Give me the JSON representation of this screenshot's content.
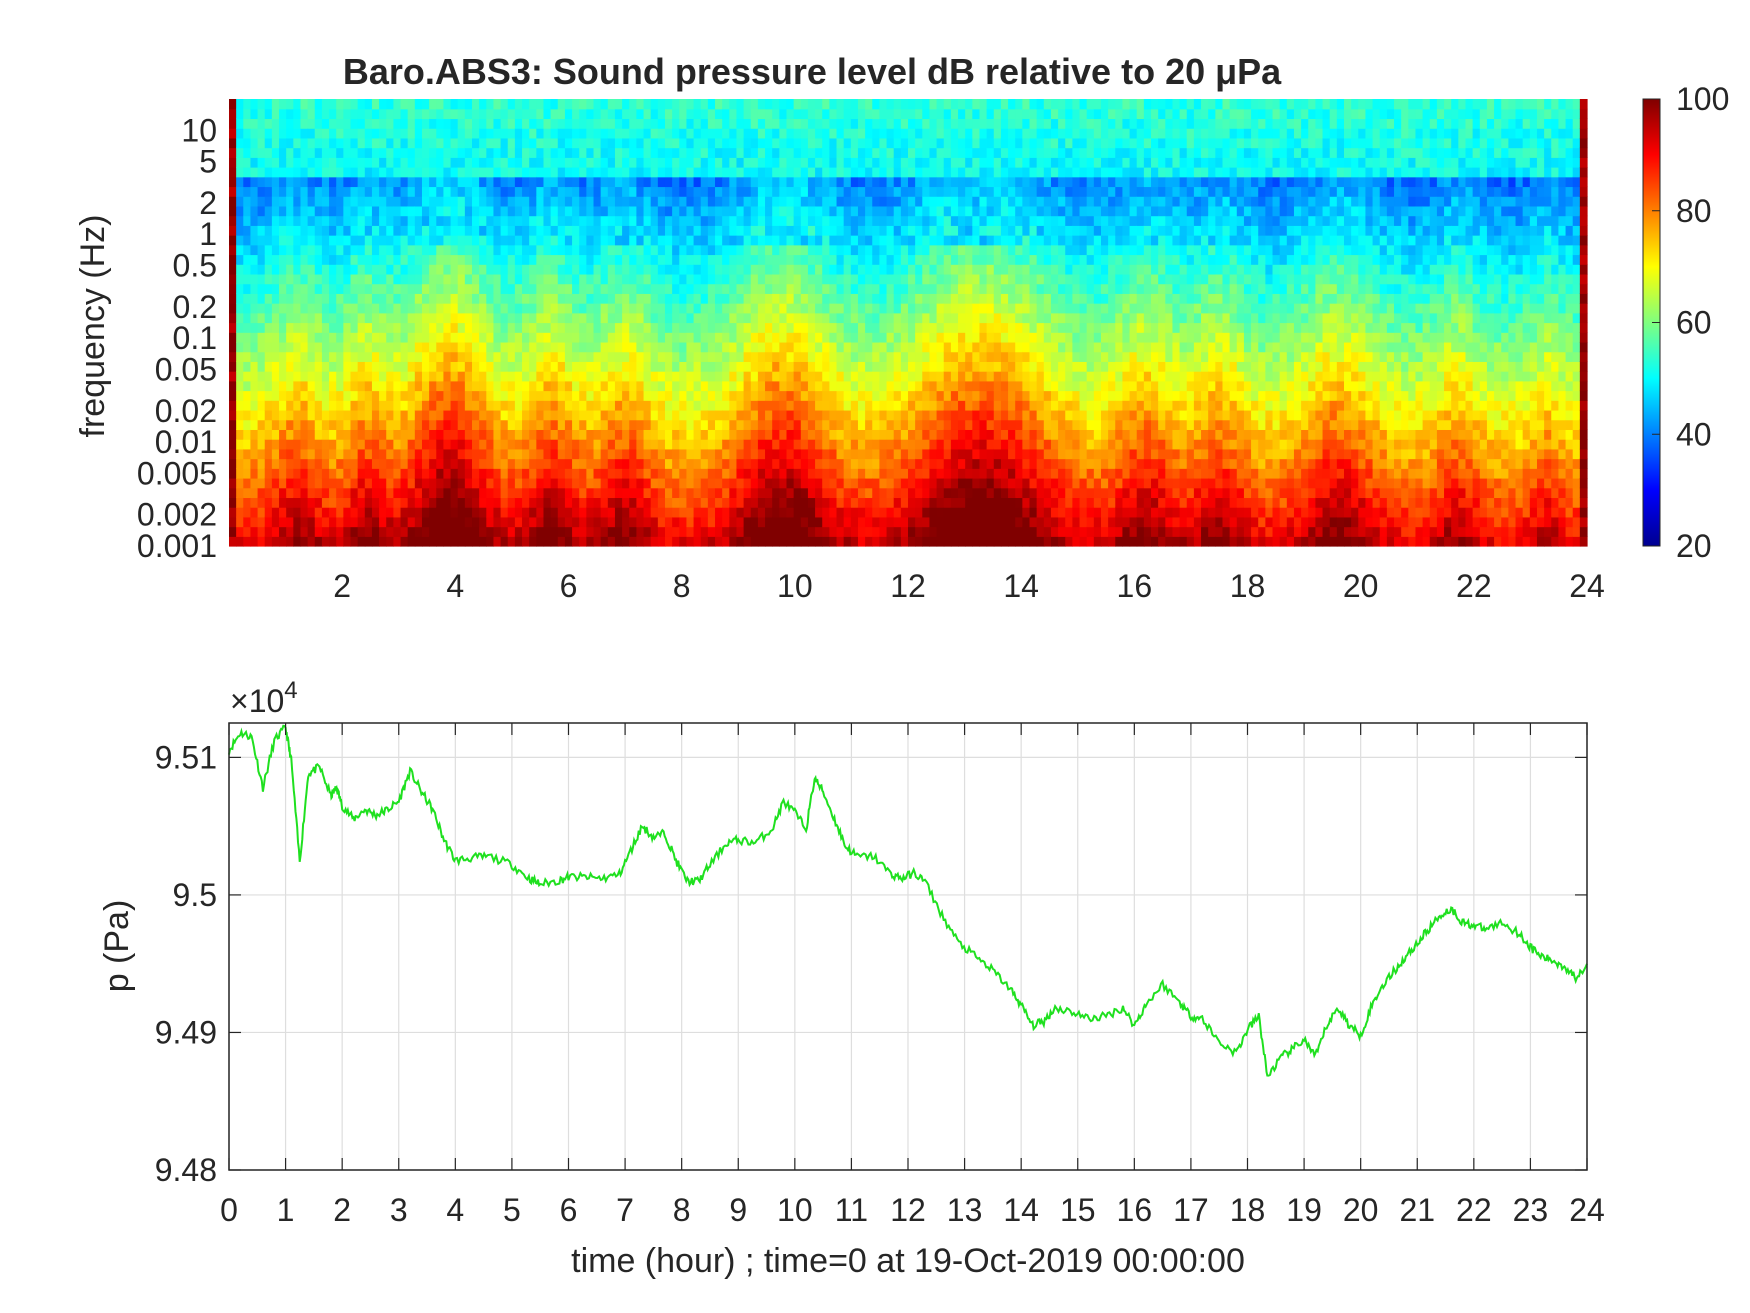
{
  "chart_data": [
    {
      "type": "heatmap",
      "title": "Baro.ABS3: Sound pressure level dB relative to 20 μPa",
      "ylabel": "frequency (Hz)",
      "xlabel": "",
      "x_range": [
        0,
        24
      ],
      "x_ticks": [
        "2",
        "4",
        "6",
        "8",
        "10",
        "12",
        "14",
        "16",
        "18",
        "20",
        "22",
        "24"
      ],
      "y_scale": "log",
      "y_range": [
        0.001,
        20
      ],
      "y_ticks": [
        "0.001",
        "0.002",
        "0.005",
        "0.01",
        "0.02",
        "0.05",
        "0.1",
        "0.2",
        "0.5",
        "1",
        "2",
        "5",
        "10"
      ],
      "colormap": "jet",
      "colorbar": {
        "range": [
          20,
          100
        ],
        "ticks": [
          "20",
          "40",
          "60",
          "80",
          "100"
        ]
      },
      "grid": false
    },
    {
      "type": "line",
      "title": "",
      "xlabel": "time (hour) ; time=0 at 19-Oct-2019 00:00:00",
      "ylabel": "p (Pa)",
      "x_range": [
        0,
        24
      ],
      "x_ticks": [
        "0",
        "1",
        "2",
        "3",
        "4",
        "5",
        "6",
        "7",
        "8",
        "9",
        "10",
        "11",
        "12",
        "13",
        "14",
        "15",
        "16",
        "17",
        "18",
        "19",
        "20",
        "21",
        "22",
        "23",
        "24"
      ],
      "y_range": [
        9.48,
        9.5125
      ],
      "y_ticks": [
        "9.48",
        "9.49",
        "9.5",
        "9.51"
      ],
      "y_exponent": "×10",
      "y_exponent_power": "4",
      "grid": true,
      "line_color": "#1fe01f",
      "series": [
        {
          "x": [
            0,
            0.2,
            0.4,
            0.6,
            0.8,
            1.0,
            1.1,
            1.25,
            1.4,
            1.6,
            1.8,
            1.9,
            2.0,
            2.2,
            2.4,
            2.6,
            2.8,
            3.0,
            3.2,
            3.4,
            3.6,
            3.8,
            4.0,
            4.3,
            4.6,
            5.0,
            5.3,
            5.5,
            5.8,
            6.0,
            6.3,
            6.6,
            6.9,
            7.1,
            7.3,
            7.5,
            7.7,
            7.9,
            8.1,
            8.3,
            8.5,
            8.8,
            9.0,
            9.3,
            9.6,
            9.8,
            10.0,
            10.2,
            10.35,
            10.5,
            10.7,
            10.9,
            11.1,
            11.4,
            11.7,
            11.9,
            12.1,
            12.3,
            12.6,
            12.9,
            13.2,
            13.5,
            13.8,
            14.0,
            14.2,
            14.4,
            14.6,
            14.9,
            15.2,
            15.5,
            15.8,
            16.0,
            16.2,
            16.5,
            16.8,
            17.0,
            17.2,
            17.5,
            17.8,
            18.0,
            18.2,
            18.35,
            18.6,
            18.8,
            19.0,
            19.2,
            19.4,
            19.6,
            19.8,
            20.0,
            20.2,
            20.4,
            20.6,
            20.8,
            21.0,
            21.2,
            21.4,
            21.6,
            21.8,
            22.0,
            22.2,
            22.5,
            22.8,
            23.0,
            23.2,
            23.4,
            23.6,
            23.8,
            24.0
          ],
          "y": [
            9.5105,
            9.5118,
            9.5115,
            9.5078,
            9.5112,
            9.5122,
            9.5098,
            9.5024,
            9.5088,
            9.5093,
            9.5072,
            9.5078,
            9.5065,
            9.5055,
            9.5062,
            9.5058,
            9.5062,
            9.5068,
            9.509,
            9.5075,
            9.5062,
            9.504,
            9.5025,
            9.5027,
            9.5028,
            9.5022,
            9.5012,
            9.5008,
            9.501,
            9.5013,
            9.5013,
            9.5012,
            9.5015,
            9.5032,
            9.505,
            9.5042,
            9.5045,
            9.5025,
            9.501,
            9.501,
            9.5022,
            9.5038,
            9.504,
            9.5038,
            9.5048,
            9.5068,
            9.506,
            9.5048,
            9.5085,
            9.5075,
            9.5055,
            9.5035,
            9.5028,
            9.5028,
            9.5015,
            9.5012,
            9.5016,
            9.501,
            9.4985,
            9.4965,
            9.4955,
            9.4945,
            9.4932,
            9.492,
            9.4905,
            9.4908,
            9.4918,
            9.4915,
            9.491,
            9.4912,
            9.4918,
            9.4905,
            9.492,
            9.4935,
            9.4922,
            9.4912,
            9.491,
            9.4893,
            9.4885,
            9.4902,
            9.4912,
            9.4868,
            9.4882,
            9.4888,
            9.4895,
            9.4882,
            9.4905,
            9.4918,
            9.4905,
            9.4898,
            9.492,
            9.4935,
            9.4945,
            9.4955,
            9.4965,
            9.4975,
            9.4985,
            9.499,
            9.498,
            9.4978,
            9.4975,
            9.498,
            9.4972,
            9.4962,
            9.4955,
            9.4952,
            9.4948,
            9.494,
            9.495
          ]
        }
      ]
    }
  ]
}
